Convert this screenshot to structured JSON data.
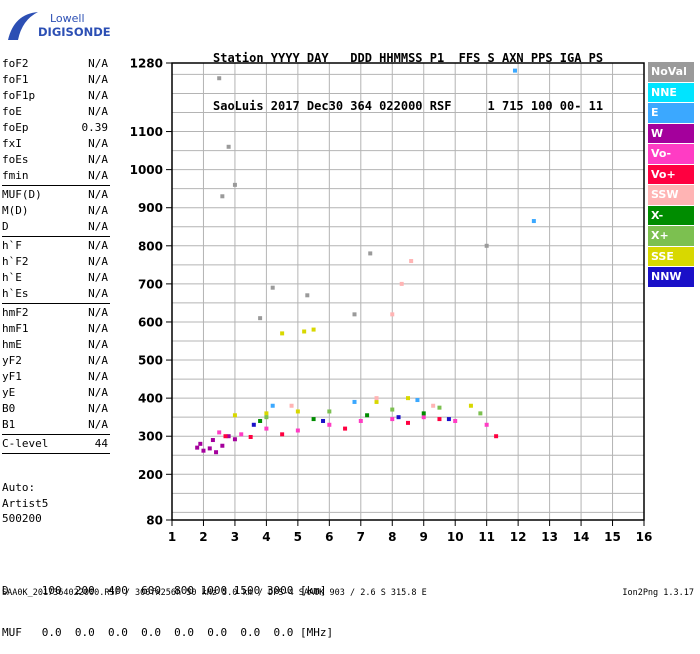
{
  "logo": {
    "line1": "Lowell",
    "line2": "DIGISONDE"
  },
  "header": {
    "line1": "Station YYYY DAY   DDD HHMMSS P1  FFS S AXN PPS IGA PS",
    "line2": "SaoLuis 2017 Dec30 364 022000 RSF     1 715 100 00- 11"
  },
  "params": {
    "g1": [
      {
        "name": "foF2",
        "value": "N/A"
      },
      {
        "name": "foF1",
        "value": "N/A"
      },
      {
        "name": "foF1p",
        "value": "N/A"
      },
      {
        "name": "foE",
        "value": "N/A"
      },
      {
        "name": "foEp",
        "value": "0.39"
      },
      {
        "name": "fxI",
        "value": "N/A"
      },
      {
        "name": "foEs",
        "value": "N/A"
      },
      {
        "name": "fmin",
        "value": "N/A"
      }
    ],
    "g2": [
      {
        "name": "MUF(D)",
        "value": "N/A"
      },
      {
        "name": "M(D)",
        "value": "N/A"
      },
      {
        "name": "D",
        "value": "N/A"
      }
    ],
    "g3": [
      {
        "name": "h`F",
        "value": "N/A"
      },
      {
        "name": "h`F2",
        "value": "N/A"
      },
      {
        "name": "h`E",
        "value": "N/A"
      },
      {
        "name": "h`Es",
        "value": "N/A"
      }
    ],
    "g4": [
      {
        "name": "hmF2",
        "value": "N/A"
      },
      {
        "name": "hmF1",
        "value": "N/A"
      },
      {
        "name": "hmE",
        "value": "N/A"
      },
      {
        "name": "yF2",
        "value": "N/A"
      },
      {
        "name": "yF1",
        "value": "N/A"
      },
      {
        "name": "yE",
        "value": "N/A"
      },
      {
        "name": "B0",
        "value": "N/A"
      },
      {
        "name": "B1",
        "value": "N/A"
      }
    ],
    "clevel": {
      "name": "C-level",
      "value": "44"
    }
  },
  "auto": {
    "l1": "Auto:",
    "l2": "Artist5",
    "l3": "500200"
  },
  "footer": {
    "d_row": "D     100  200  400  600  800 1000 1500 3000 [km]",
    "muf_row": "MUF   0.0  0.0  0.0  0.0  0.0  0.0  0.0  0.0 [MHz]"
  },
  "filename": "SAA0K_2017364022000.RSF / 300fx256h 50 kHz 5.0 km / DPS-4 SAA0K 903 / 2.6 S 315.8 E",
  "version": "Ion2Png 1.3.17",
  "legend": [
    {
      "label": "NoVal",
      "color": "#9a9a9a"
    },
    {
      "label": "NNE",
      "color": "#00e4ff"
    },
    {
      "label": "E",
      "color": "#3ba8ff"
    },
    {
      "label": "W",
      "color": "#a4009c"
    },
    {
      "label": "Vo-",
      "color": "#ff3cc4"
    },
    {
      "label": "Vo+",
      "color": "#ff0040"
    },
    {
      "label": "SSW",
      "color": "#ffb4b4"
    },
    {
      "label": "X-",
      "color": "#008c00"
    },
    {
      "label": "X+",
      "color": "#7cc050"
    },
    {
      "label": "SSE",
      "color": "#d8d800"
    },
    {
      "label": "NNW",
      "color": "#1a10c8"
    }
  ],
  "chart_data": {
    "type": "scatter",
    "xlabel": "",
    "ylabel": "",
    "xlim": [
      1,
      16
    ],
    "ylim": [
      80,
      1280
    ],
    "x_ticks": [
      "1",
      "2",
      "3",
      "4",
      "5",
      "6",
      "7",
      "8",
      "9",
      "10",
      "11",
      "12",
      "13",
      "14",
      "15",
      "16"
    ],
    "y_ticks": [
      "80",
      "200",
      "300",
      "400",
      "500",
      "600",
      "700",
      "800",
      "900",
      "1000",
      "1100",
      "1280"
    ],
    "series": [
      {
        "color_key": "W",
        "points": [
          [
            1.8,
            270
          ],
          [
            2.0,
            262
          ],
          [
            2.2,
            268
          ],
          [
            2.4,
            258
          ],
          [
            2.6,
            275
          ],
          [
            1.9,
            280
          ],
          [
            2.3,
            290
          ],
          [
            2.8,
            300
          ],
          [
            3.0,
            292
          ]
        ]
      },
      {
        "color_key": "Vo-",
        "points": [
          [
            2.5,
            310
          ],
          [
            3.2,
            305
          ],
          [
            4.0,
            320
          ],
          [
            5.0,
            315
          ],
          [
            6.0,
            330
          ],
          [
            7.0,
            340
          ],
          [
            8.0,
            345
          ],
          [
            9.0,
            350
          ],
          [
            10.0,
            340
          ],
          [
            11.0,
            330
          ]
        ]
      },
      {
        "color_key": "Vo+",
        "points": [
          [
            2.7,
            300
          ],
          [
            3.5,
            298
          ],
          [
            4.5,
            305
          ],
          [
            6.5,
            320
          ],
          [
            8.5,
            335
          ],
          [
            9.5,
            345
          ],
          [
            11.3,
            300
          ]
        ]
      },
      {
        "color_key": "SSE",
        "points": [
          [
            3.0,
            355
          ],
          [
            4.0,
            360
          ],
          [
            5.0,
            365
          ],
          [
            4.5,
            570
          ],
          [
            5.2,
            575
          ],
          [
            5.5,
            580
          ],
          [
            7.5,
            390
          ],
          [
            8.5,
            400
          ],
          [
            10.5,
            380
          ]
        ]
      },
      {
        "color_key": "X+",
        "points": [
          [
            4.0,
            350
          ],
          [
            6.0,
            365
          ],
          [
            8.0,
            370
          ],
          [
            9.5,
            375
          ],
          [
            10.8,
            360
          ]
        ]
      },
      {
        "color_key": "X-",
        "points": [
          [
            3.8,
            340
          ],
          [
            5.5,
            345
          ],
          [
            7.2,
            355
          ],
          [
            9.0,
            360
          ]
        ]
      },
      {
        "color_key": "E",
        "points": [
          [
            4.2,
            380
          ],
          [
            6.8,
            390
          ],
          [
            8.8,
            395
          ],
          [
            12.5,
            865
          ],
          [
            11.9,
            1260
          ]
        ]
      },
      {
        "color_key": "NNW",
        "points": [
          [
            3.6,
            330
          ],
          [
            5.8,
            340
          ],
          [
            8.2,
            350
          ],
          [
            9.8,
            345
          ]
        ]
      },
      {
        "color_key": "SSW",
        "points": [
          [
            4.8,
            380
          ],
          [
            7.5,
            400
          ],
          [
            8.0,
            620
          ],
          [
            8.3,
            700
          ],
          [
            8.6,
            760
          ],
          [
            9.3,
            380
          ]
        ]
      },
      {
        "color_key": "NoVal",
        "points": [
          [
            2.5,
            1240
          ],
          [
            2.6,
            930
          ],
          [
            2.8,
            1060
          ],
          [
            3.0,
            960
          ],
          [
            3.8,
            610
          ],
          [
            4.2,
            690
          ],
          [
            5.3,
            670
          ],
          [
            6.8,
            620
          ],
          [
            7.3,
            780
          ],
          [
            11.0,
            800
          ]
        ]
      }
    ]
  }
}
